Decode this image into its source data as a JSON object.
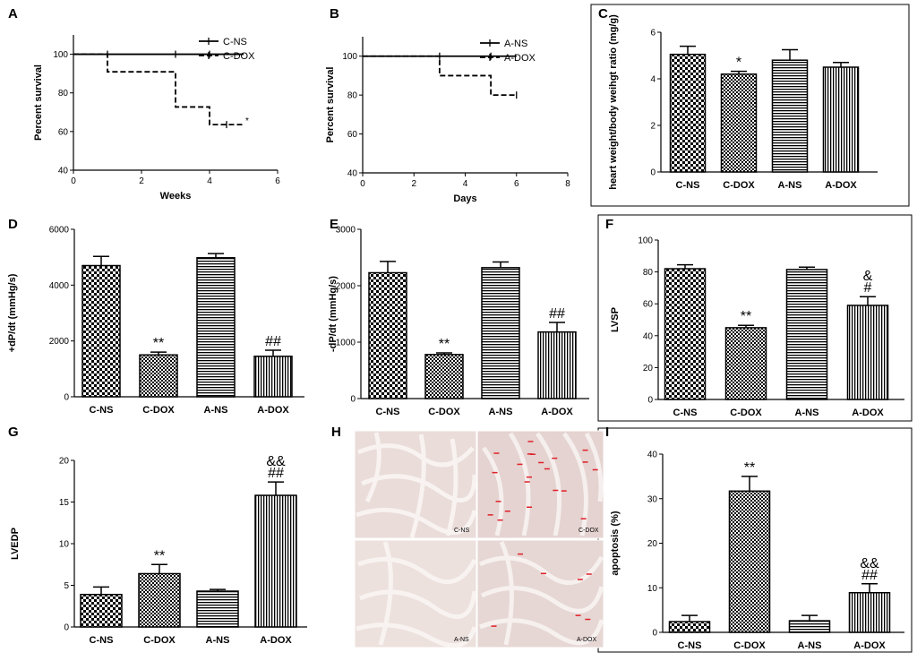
{
  "colors": {
    "ink": "#000000",
    "tissue": "#e9dcd9",
    "background": "#ffffff",
    "marker": "#e0202a"
  },
  "chart_data": [
    {
      "panel": "A",
      "type": "line",
      "xlabel": "Weeks",
      "ylabel": "Percent survival",
      "xlim": [
        0,
        6
      ],
      "ylim": [
        40,
        110
      ],
      "xticks": [
        0,
        2,
        4,
        6
      ],
      "yticks": [
        40,
        60,
        80,
        100
      ],
      "series": [
        {
          "name": "C-NS",
          "style": "solid",
          "x": [
            0,
            5
          ],
          "y": [
            100,
            100
          ],
          "censor_x": [
            1,
            3,
            4
          ]
        },
        {
          "name": "C-DOX",
          "style": "dashed",
          "x": [
            0,
            1,
            1,
            3,
            3,
            4,
            4,
            5
          ],
          "y": [
            100,
            100,
            90.9,
            90.9,
            72.7,
            72.7,
            63.6,
            63.6
          ],
          "censor_x": [
            4.5
          ],
          "annotation": "*"
        }
      ]
    },
    {
      "panel": "B",
      "type": "line",
      "xlabel": "Days",
      "ylabel": "Percent survival",
      "xlim": [
        0,
        8
      ],
      "ylim": [
        40,
        110
      ],
      "xticks": [
        0,
        2,
        4,
        6,
        8
      ],
      "yticks": [
        40,
        60,
        80,
        100
      ],
      "series": [
        {
          "name": "A-NS",
          "style": "solid",
          "x": [
            0,
            6
          ],
          "y": [
            100,
            100
          ],
          "censor_x": [
            3,
            5
          ]
        },
        {
          "name": "A-DOX",
          "style": "dashed",
          "x": [
            0,
            3,
            3,
            5,
            5,
            6
          ],
          "y": [
            100,
            100,
            90,
            90,
            80,
            80
          ],
          "censor_x": [
            6
          ]
        }
      ]
    },
    {
      "panel": "C",
      "type": "bar",
      "ylabel": "heart weight/body weihgt ratio (mg/g)",
      "categories": [
        "C-NS",
        "C-DOX",
        "A-NS",
        "A-DOX"
      ],
      "values": [
        5.05,
        4.2,
        4.8,
        4.5
      ],
      "errors": [
        0.35,
        0.12,
        0.45,
        0.2
      ],
      "annotations": [
        "",
        "*",
        "",
        ""
      ],
      "ylim": [
        0,
        6
      ],
      "yticks": [
        0,
        2,
        4,
        6
      ]
    },
    {
      "panel": "D",
      "type": "bar",
      "ylabel": "+dP/dt (mmHg/s)",
      "categories": [
        "C-NS",
        "C-DOX",
        "A-NS",
        "A-DOX"
      ],
      "values": [
        4700,
        1500,
        4980,
        1450
      ],
      "errors": [
        330,
        100,
        150,
        220
      ],
      "annotations": [
        "",
        "**",
        "",
        "##"
      ],
      "ylim": [
        0,
        6000
      ],
      "yticks": [
        0,
        2000,
        4000,
        6000
      ]
    },
    {
      "panel": "E",
      "type": "bar",
      "ylabel": "-dP/dt (mmHg/s)",
      "categories": [
        "C-NS",
        "C-DOX",
        "A-NS",
        "A-DOX"
      ],
      "values": [
        2230,
        780,
        2320,
        1180
      ],
      "errors": [
        200,
        30,
        100,
        170
      ],
      "annotations": [
        "",
        "**",
        "",
        "##"
      ],
      "ylim": [
        0,
        3000
      ],
      "yticks": [
        0,
        1000,
        2000,
        3000
      ]
    },
    {
      "panel": "F",
      "type": "bar",
      "ylabel": "LVSP",
      "categories": [
        "C-NS",
        "C-DOX",
        "A-NS",
        "A-DOX"
      ],
      "values": [
        82,
        45,
        81.5,
        59
      ],
      "errors": [
        2.5,
        1.5,
        1.5,
        5.5
      ],
      "annotations": [
        "",
        "**",
        "",
        "&\n#"
      ],
      "ylim": [
        0,
        100
      ],
      "yticks": [
        0,
        20,
        40,
        60,
        80,
        100
      ]
    },
    {
      "panel": "G",
      "type": "bar",
      "ylabel": "LVEDP",
      "categories": [
        "C-NS",
        "C-DOX",
        "A-NS",
        "A-DOX"
      ],
      "values": [
        3.9,
        6.4,
        4.3,
        15.8
      ],
      "errors": [
        0.9,
        1.1,
        0.2,
        1.6
      ],
      "annotations": [
        "",
        "**",
        "",
        "&&\n##"
      ],
      "ylim": [
        0,
        20
      ],
      "yticks": [
        0,
        5,
        10,
        15,
        20
      ]
    },
    {
      "panel": "I",
      "type": "bar",
      "ylabel": "apoptosis (%)",
      "categories": [
        "C-NS",
        "C-DOX",
        "A-NS",
        "A-DOX"
      ],
      "values": [
        2.4,
        31.7,
        2.6,
        8.9
      ],
      "errors": [
        1.4,
        3.3,
        1.2,
        2.0
      ],
      "annotations": [
        "",
        "**",
        "",
        "&&\n##"
      ],
      "ylim": [
        0,
        40
      ],
      "yticks": [
        0,
        10,
        20,
        30,
        40
      ]
    }
  ],
  "histology": {
    "panel": "H",
    "images": [
      {
        "label": "C-NS",
        "markers": 0
      },
      {
        "label": "C-DOX",
        "markers": 22
      },
      {
        "label": "A-NS",
        "markers": 0
      },
      {
        "label": "A-DOX",
        "markers": 7
      }
    ]
  }
}
